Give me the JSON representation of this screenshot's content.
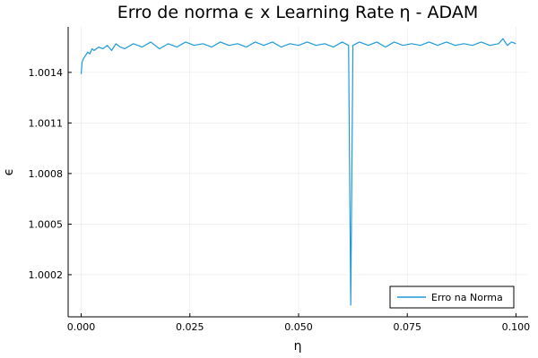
{
  "chart_data": {
    "type": "line",
    "title": "Erro de norma ϵ x Learning Rate η - ADAM",
    "xlabel": "η",
    "ylabel": "ϵ",
    "xlim": [
      -0.003,
      0.1028
    ],
    "ylim": [
      0.99995,
      1.00167
    ],
    "x_ticks": [
      0.0,
      0.025,
      0.05,
      0.075,
      0.1
    ],
    "x_tick_labels": [
      "0.000",
      "0.025",
      "0.050",
      "0.075",
      "0.100"
    ],
    "y_ticks": [
      1.0002,
      1.0005,
      1.0008,
      1.0011,
      1.0014
    ],
    "y_tick_labels": [
      "1.0002",
      "1.0005",
      "1.0008",
      "1.0011",
      "1.0014"
    ],
    "grid": true,
    "legend_position": "bottom-right",
    "series": [
      {
        "name": "Erro na Norma",
        "color": "#1f9ad9",
        "points": [
          [
            0.0,
            1.00139
          ],
          [
            0.0002,
            1.00146
          ],
          [
            0.0005,
            1.00148
          ],
          [
            0.001,
            1.0015
          ],
          [
            0.0015,
            1.00152
          ],
          [
            0.002,
            1.00151
          ],
          [
            0.0025,
            1.00154
          ],
          [
            0.003,
            1.00153
          ],
          [
            0.004,
            1.00155
          ],
          [
            0.005,
            1.00154
          ],
          [
            0.006,
            1.00156
          ],
          [
            0.007,
            1.00153
          ],
          [
            0.008,
            1.00157
          ],
          [
            0.009,
            1.00155
          ],
          [
            0.01,
            1.00154
          ],
          [
            0.012,
            1.00157
          ],
          [
            0.014,
            1.00155
          ],
          [
            0.016,
            1.00158
          ],
          [
            0.018,
            1.00154
          ],
          [
            0.02,
            1.00157
          ],
          [
            0.022,
            1.00155
          ],
          [
            0.024,
            1.00158
          ],
          [
            0.026,
            1.00156
          ],
          [
            0.028,
            1.00157
          ],
          [
            0.03,
            1.00155
          ],
          [
            0.032,
            1.00158
          ],
          [
            0.034,
            1.00156
          ],
          [
            0.036,
            1.00157
          ],
          [
            0.038,
            1.00155
          ],
          [
            0.04,
            1.00158
          ],
          [
            0.042,
            1.00156
          ],
          [
            0.044,
            1.00158
          ],
          [
            0.046,
            1.00155
          ],
          [
            0.048,
            1.00157
          ],
          [
            0.05,
            1.00156
          ],
          [
            0.052,
            1.00158
          ],
          [
            0.054,
            1.00156
          ],
          [
            0.056,
            1.00157
          ],
          [
            0.058,
            1.00155
          ],
          [
            0.06,
            1.00158
          ],
          [
            0.0615,
            1.00156
          ],
          [
            0.062,
            1.00002
          ],
          [
            0.0625,
            1.00156
          ],
          [
            0.064,
            1.00158
          ],
          [
            0.066,
            1.00156
          ],
          [
            0.068,
            1.00158
          ],
          [
            0.07,
            1.00155
          ],
          [
            0.072,
            1.00158
          ],
          [
            0.074,
            1.00156
          ],
          [
            0.076,
            1.00157
          ],
          [
            0.078,
            1.00156
          ],
          [
            0.08,
            1.00158
          ],
          [
            0.082,
            1.00156
          ],
          [
            0.084,
            1.00158
          ],
          [
            0.086,
            1.00156
          ],
          [
            0.088,
            1.00157
          ],
          [
            0.09,
            1.00156
          ],
          [
            0.092,
            1.00158
          ],
          [
            0.094,
            1.00156
          ],
          [
            0.096,
            1.00157
          ],
          [
            0.097,
            1.0016
          ],
          [
            0.098,
            1.00156
          ],
          [
            0.099,
            1.00158
          ],
          [
            0.1,
            1.00157
          ]
        ]
      }
    ]
  }
}
